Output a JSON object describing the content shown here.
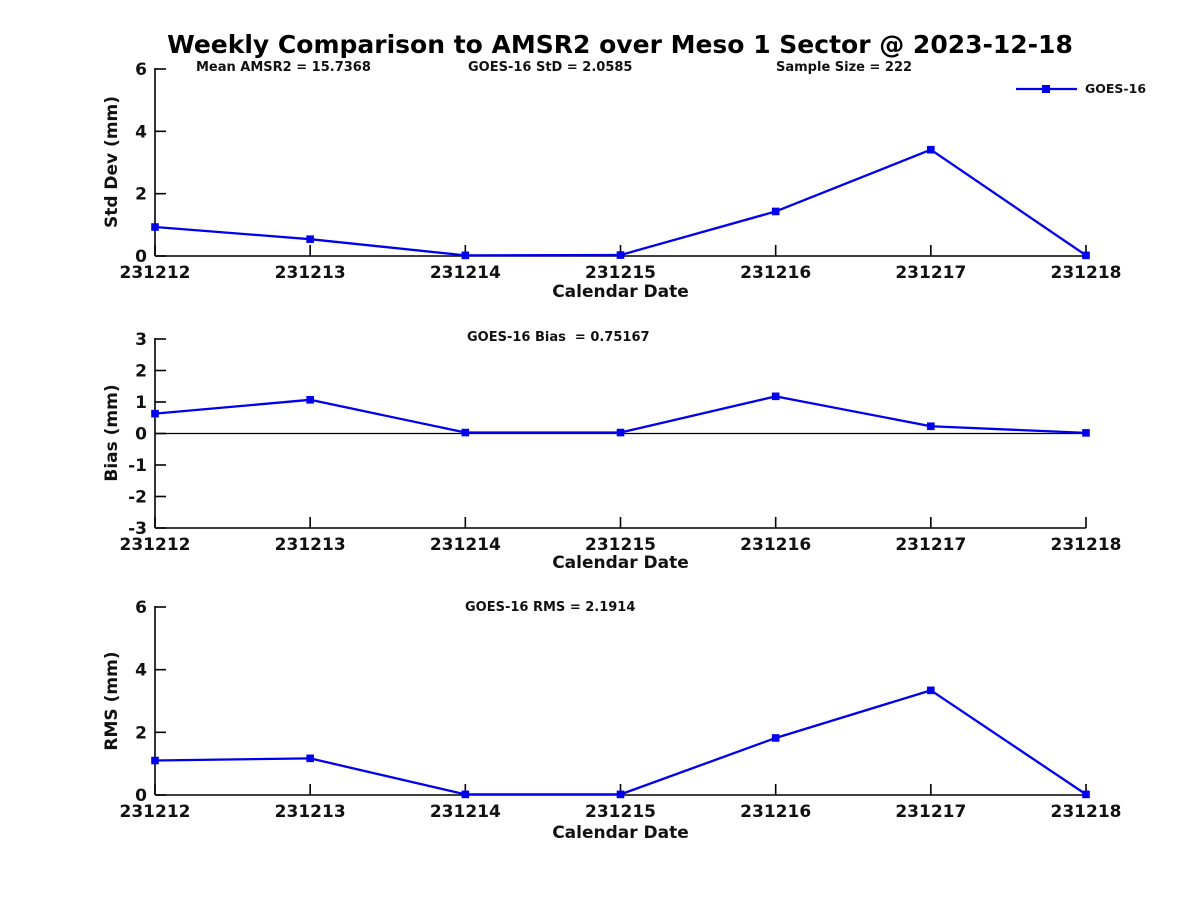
{
  "page": {
    "title": "Weekly Comparison to AMSR2 over Meso 1 Sector @ 2023-12-18"
  },
  "stats": {
    "mean_amsr2": "Mean AMSR2 = 15.7368",
    "goes16_std": "GOES-16 StD = 2.0585",
    "sample_size": "Sample Size = 222"
  },
  "legend": {
    "label": "GOES-16",
    "color": "#0000EE",
    "position": "top-right"
  },
  "colors": {
    "series_blue": "#0000EE",
    "axis_black": "#000000",
    "text_dark": "#111111"
  },
  "chart_data": [
    {
      "type": "line",
      "name": "std-dev-subplot",
      "title": "",
      "xlabel": "Calendar Date",
      "ylabel": "Std Dev (mm)",
      "categories": [
        "231212",
        "231213",
        "231214",
        "231215",
        "231216",
        "231217",
        "231218"
      ],
      "series": [
        {
          "name": "GOES-16",
          "values": [
            0.93,
            0.54,
            0.02,
            0.03,
            1.43,
            3.41,
            0.02
          ]
        }
      ],
      "ylim": [
        0,
        6
      ],
      "yticks": [
        0,
        2,
        4,
        6
      ],
      "grid": false,
      "zero_line": false,
      "annotations": [
        "Mean AMSR2 = 15.7368",
        "GOES-16 StD = 2.0585",
        "Sample Size = 222"
      ],
      "legend_position": "top-right"
    },
    {
      "type": "line",
      "name": "bias-subplot",
      "title": "GOES-16 Bias  = 0.75167",
      "xlabel": "Calendar Date",
      "ylabel": "Bias (mm)",
      "categories": [
        "231212",
        "231213",
        "231214",
        "231215",
        "231216",
        "231217",
        "231218"
      ],
      "series": [
        {
          "name": "GOES-16",
          "values": [
            0.63,
            1.07,
            0.03,
            0.03,
            1.18,
            0.23,
            0.02
          ]
        }
      ],
      "ylim": [
        -3,
        3
      ],
      "yticks": [
        -3,
        -2,
        -1,
        0,
        1,
        2,
        3
      ],
      "grid": false,
      "zero_line": true
    },
    {
      "type": "line",
      "name": "rms-subplot",
      "title": "GOES-16 RMS = 2.1914",
      "xlabel": "Calendar Date",
      "ylabel": "RMS (mm)",
      "categories": [
        "231212",
        "231213",
        "231214",
        "231215",
        "231216",
        "231217",
        "231218"
      ],
      "series": [
        {
          "name": "GOES-16",
          "values": [
            1.1,
            1.17,
            0.02,
            0.02,
            1.82,
            3.34,
            0.02
          ]
        }
      ],
      "ylim": [
        0,
        6
      ],
      "yticks": [
        0,
        2,
        4,
        6
      ],
      "grid": false,
      "zero_line": false
    }
  ]
}
